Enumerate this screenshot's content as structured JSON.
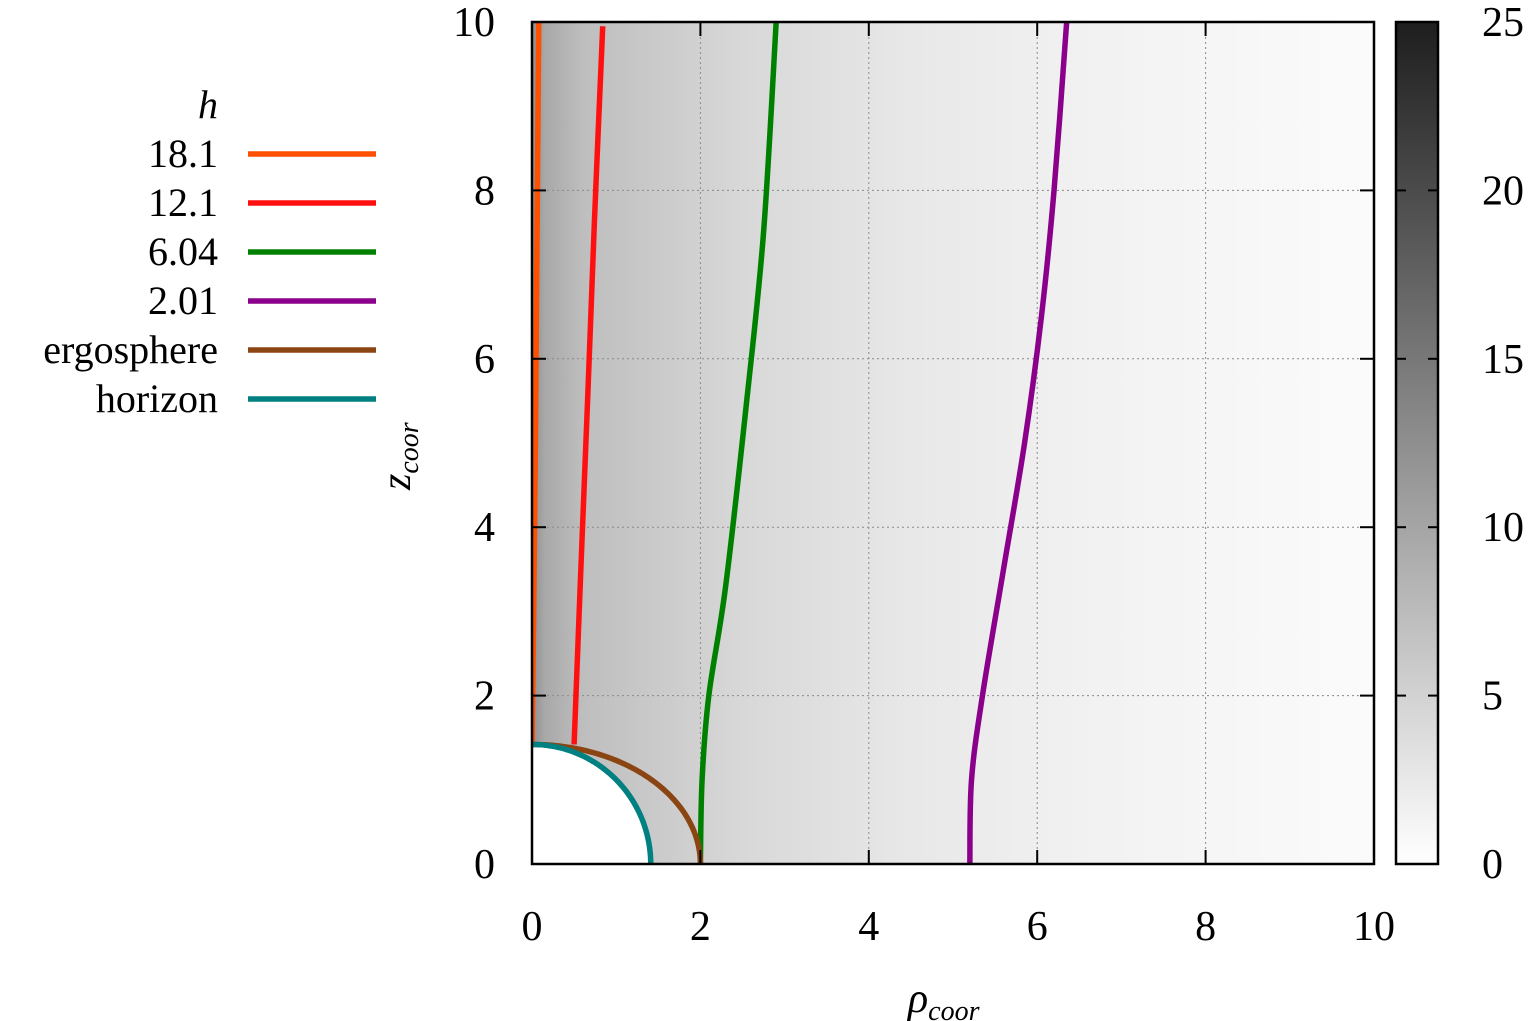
{
  "chart_data": {
    "type": "line",
    "title": "",
    "xlabel": {
      "main": "ρ",
      "sub": "coor"
    },
    "ylabel": {
      "main": "z",
      "sub": "coor"
    },
    "xlim": [
      0,
      10
    ],
    "ylim": [
      0,
      10
    ],
    "xticks": [
      "0",
      "2",
      "4",
      "6",
      "8",
      "10"
    ],
    "yticks": [
      "0",
      "2",
      "4",
      "6",
      "8",
      "10"
    ],
    "grid": true,
    "legend_title": "h",
    "legend_position": "left",
    "background_map": {
      "type": "heatmap",
      "colormap": "grayscale",
      "range": [
        0,
        25
      ],
      "colorbar_ticks": [
        "0",
        "5",
        "10",
        "15",
        "20",
        "25"
      ]
    },
    "series": [
      {
        "name": "18.1",
        "color": "#ff4f00",
        "x": [
          0.0,
          0.02,
          0.04,
          0.06,
          0.08
        ],
        "y": [
          1.42,
          3.0,
          5.0,
          7.5,
          10.0
        ]
      },
      {
        "name": "12.1",
        "color": "#ff1010",
        "x": [
          0.5,
          0.58,
          0.66,
          0.74,
          0.84
        ],
        "y": [
          1.42,
          3.5,
          5.5,
          7.6,
          9.95
        ]
      },
      {
        "name": "6.04",
        "color": "#008000",
        "x": [
          2.0,
          2.02,
          2.1,
          2.3,
          2.55,
          2.75,
          2.9
        ],
        "y": [
          0.0,
          1.0,
          2.0,
          3.3,
          5.5,
          7.5,
          10.0
        ]
      },
      {
        "name": "2.01",
        "color": "#8b008b",
        "x": [
          5.2,
          5.22,
          5.35,
          5.6,
          5.85,
          6.05,
          6.2,
          6.35
        ],
        "y": [
          0.0,
          1.0,
          2.0,
          3.5,
          5.0,
          6.5,
          8.0,
          10.0
        ]
      },
      {
        "name": "ergosphere",
        "color": "#8b4513",
        "shape": "quarter-ellipse",
        "a": 2.0,
        "b": 1.42
      },
      {
        "name": "horizon",
        "color": "#008080",
        "shape": "quarter-ellipse",
        "a": 1.41,
        "b": 1.42
      }
    ]
  }
}
